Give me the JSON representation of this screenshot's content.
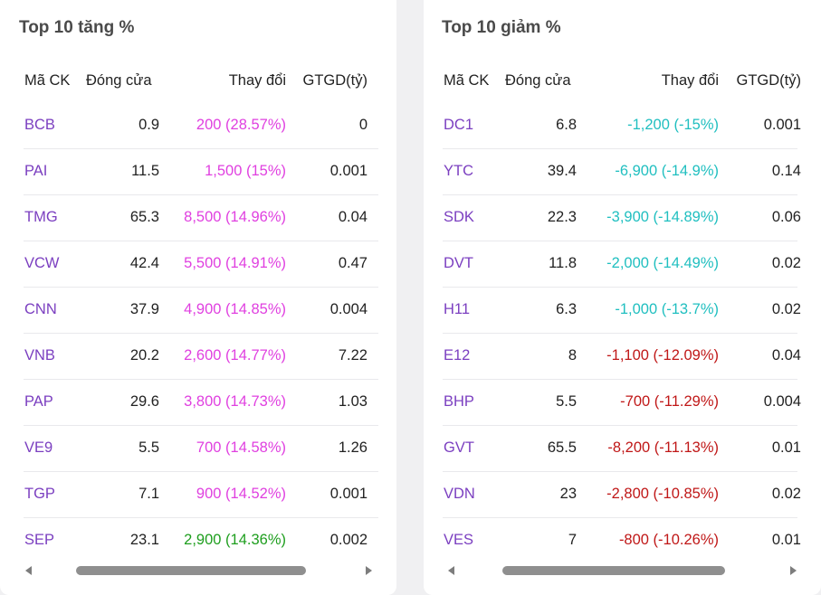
{
  "colors": {
    "symbol": "#7b3fc0",
    "gain_pink": "#e040e0",
    "gain_green": "#1e9e1e",
    "loss_cyan": "#20bfc0",
    "loss_red": "#c01818"
  },
  "gainers": {
    "title": "Top 10 tăng %",
    "headers": {
      "symbol": "Mã CK",
      "close": "Đóng cửa",
      "change": "Thay đổi",
      "value": "GTGD(tỷ)"
    },
    "rows": [
      {
        "symbol": "BCB",
        "close": "0.9",
        "change": "200 (28.57%)",
        "value": "0",
        "tone": "pink"
      },
      {
        "symbol": "PAI",
        "close": "11.5",
        "change": "1,500 (15%)",
        "value": "0.001",
        "tone": "pink"
      },
      {
        "symbol": "TMG",
        "close": "65.3",
        "change": "8,500 (14.96%)",
        "value": "0.04",
        "tone": "pink"
      },
      {
        "symbol": "VCW",
        "close": "42.4",
        "change": "5,500 (14.91%)",
        "value": "0.47",
        "tone": "pink"
      },
      {
        "symbol": "CNN",
        "close": "37.9",
        "change": "4,900 (14.85%)",
        "value": "0.004",
        "tone": "pink"
      },
      {
        "symbol": "VNB",
        "close": "20.2",
        "change": "2,600 (14.77%)",
        "value": "7.22",
        "tone": "pink"
      },
      {
        "symbol": "PAP",
        "close": "29.6",
        "change": "3,800 (14.73%)",
        "value": "1.03",
        "tone": "pink"
      },
      {
        "symbol": "VE9",
        "close": "5.5",
        "change": "700 (14.58%)",
        "value": "1.26",
        "tone": "pink"
      },
      {
        "symbol": "TGP",
        "close": "7.1",
        "change": "900 (14.52%)",
        "value": "0.001",
        "tone": "pink"
      },
      {
        "symbol": "SEP",
        "close": "23.1",
        "change": "2,900 (14.36%)",
        "value": "0.002",
        "tone": "green"
      }
    ]
  },
  "losers": {
    "title": "Top 10 giảm %",
    "headers": {
      "symbol": "Mã CK",
      "close": "Đóng cửa",
      "change": "Thay đổi",
      "value": "GTGD(tỷ)"
    },
    "rows": [
      {
        "symbol": "DC1",
        "close": "6.8",
        "change": "-1,200 (-15%)",
        "value": "0.001",
        "tone": "cyan"
      },
      {
        "symbol": "YTC",
        "close": "39.4",
        "change": "-6,900 (-14.9%)",
        "value": "0.14",
        "tone": "cyan"
      },
      {
        "symbol": "SDK",
        "close": "22.3",
        "change": "-3,900 (-14.89%)",
        "value": "0.06",
        "tone": "cyan"
      },
      {
        "symbol": "DVT",
        "close": "11.8",
        "change": "-2,000 (-14.49%)",
        "value": "0.02",
        "tone": "cyan"
      },
      {
        "symbol": "H11",
        "close": "6.3",
        "change": "-1,000 (-13.7%)",
        "value": "0.02",
        "tone": "cyan"
      },
      {
        "symbol": "E12",
        "close": "8",
        "change": "-1,100 (-12.09%)",
        "value": "0.04",
        "tone": "red"
      },
      {
        "symbol": "BHP",
        "close": "5.5",
        "change": "-700 (-11.29%)",
        "value": "0.004",
        "tone": "red"
      },
      {
        "symbol": "GVT",
        "close": "65.5",
        "change": "-8,200 (-11.13%)",
        "value": "0.01",
        "tone": "red"
      },
      {
        "symbol": "VDN",
        "close": "23",
        "change": "-2,800 (-10.85%)",
        "value": "0.02",
        "tone": "red"
      },
      {
        "symbol": "VES",
        "close": "7",
        "change": "-800 (-10.26%)",
        "value": "0.01",
        "tone": "red"
      }
    ]
  },
  "scroll_icons": {
    "left": "scroll-left-arrow-icon",
    "right": "scroll-right-arrow-icon"
  }
}
